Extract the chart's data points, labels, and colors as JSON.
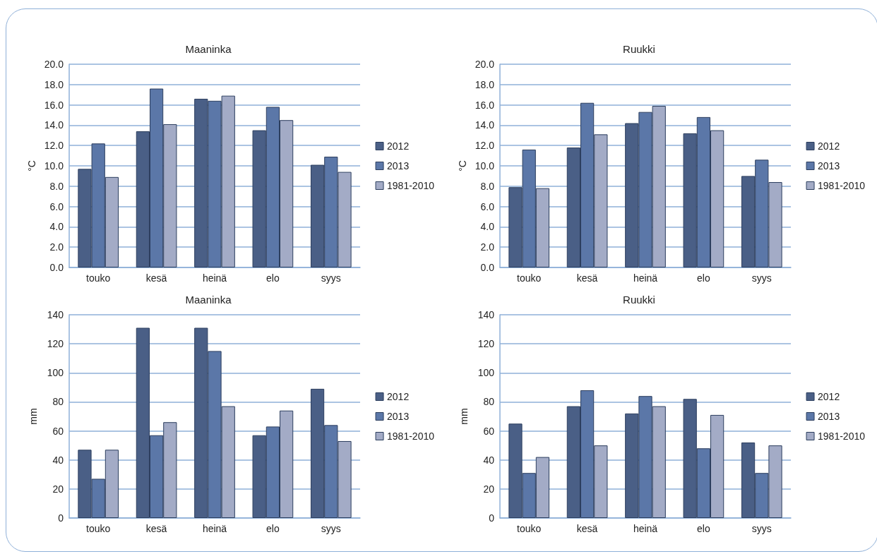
{
  "chart_data": [
    {
      "type": "bar",
      "title": "Maaninka",
      "ylabel": "°C",
      "categories": [
        "touko",
        "kesä",
        "heinä",
        "elo",
        "syys"
      ],
      "series": [
        {
          "name": "2012",
          "color": "#4a5f86",
          "values": [
            9.7,
            13.4,
            16.6,
            13.5,
            10.1
          ]
        },
        {
          "name": "2013",
          "color": "#5b77a8",
          "values": [
            12.2,
            17.6,
            16.4,
            15.8,
            10.9
          ]
        },
        {
          "name": "1981-2010",
          "color": "#a3abc6",
          "values": [
            8.9,
            14.1,
            16.9,
            14.5,
            9.4
          ]
        }
      ],
      "ylim": [
        0,
        20
      ],
      "yticks": [
        {
          "value": 0,
          "label": "0.0"
        },
        {
          "value": 2,
          "label": "2.0"
        },
        {
          "value": 4,
          "label": "4.0"
        },
        {
          "value": 6,
          "label": "6.0"
        },
        {
          "value": 8,
          "label": "8.0"
        },
        {
          "value": 10,
          "label": "10.0"
        },
        {
          "value": 12,
          "label": "12.0"
        },
        {
          "value": 14,
          "label": "14.0"
        },
        {
          "value": 16,
          "label": "16.0"
        },
        {
          "value": 18,
          "label": "18.0"
        },
        {
          "value": 20,
          "label": "20.0"
        }
      ],
      "grid": "y",
      "legend": "right"
    },
    {
      "type": "bar",
      "title": "Ruukki",
      "ylabel": "°C",
      "categories": [
        "touko",
        "kesä",
        "heinä",
        "elo",
        "syys"
      ],
      "series": [
        {
          "name": "2012",
          "color": "#4a5f86",
          "values": [
            7.9,
            11.8,
            14.2,
            13.2,
            9.0
          ]
        },
        {
          "name": "2013",
          "color": "#5b77a8",
          "values": [
            11.6,
            16.2,
            15.3,
            14.8,
            10.6
          ]
        },
        {
          "name": "1981-2010",
          "color": "#a3abc6",
          "values": [
            7.8,
            13.1,
            15.9,
            13.5,
            8.4
          ]
        }
      ],
      "ylim": [
        0,
        20
      ],
      "yticks": [
        {
          "value": 0,
          "label": "0.0"
        },
        {
          "value": 2,
          "label": "2.0"
        },
        {
          "value": 4,
          "label": "4.0"
        },
        {
          "value": 6,
          "label": "6.0"
        },
        {
          "value": 8,
          "label": "8.0"
        },
        {
          "value": 10,
          "label": "10.0"
        },
        {
          "value": 12,
          "label": "12.0"
        },
        {
          "value": 14,
          "label": "14.0"
        },
        {
          "value": 16,
          "label": "16.0"
        },
        {
          "value": 18,
          "label": "18.0"
        },
        {
          "value": 20,
          "label": "20.0"
        }
      ],
      "grid": "y",
      "legend": "right"
    },
    {
      "type": "bar",
      "title": "Maaninka",
      "ylabel": "mm",
      "categories": [
        "touko",
        "kesä",
        "heinä",
        "elo",
        "syys"
      ],
      "series": [
        {
          "name": "2012",
          "color": "#4a5f86",
          "values": [
            47,
            131,
            131,
            57,
            89
          ]
        },
        {
          "name": "2013",
          "color": "#5b77a8",
          "values": [
            27,
            57,
            115,
            63,
            64
          ]
        },
        {
          "name": "1981-2010",
          "color": "#a3abc6",
          "values": [
            47,
            66,
            77,
            74,
            53
          ]
        }
      ],
      "ylim": [
        0,
        140
      ],
      "yticks": [
        0,
        20,
        40,
        60,
        80,
        100,
        120,
        140
      ],
      "grid": "y",
      "legend": "right"
    },
    {
      "type": "bar",
      "title": "Ruukki",
      "ylabel": "mm",
      "categories": [
        "touko",
        "kesä",
        "heinä",
        "elo",
        "syys"
      ],
      "series": [
        {
          "name": "2012",
          "color": "#4a5f86",
          "values": [
            65,
            77,
            72,
            82,
            52
          ]
        },
        {
          "name": "2013",
          "color": "#5b77a8",
          "values": [
            31,
            88,
            84,
            48,
            31
          ]
        },
        {
          "name": "1981-2010",
          "color": "#a3abc6",
          "values": [
            42,
            50,
            77,
            71,
            50
          ]
        }
      ],
      "ylim": [
        0,
        140
      ],
      "yticks": [
        0,
        20,
        40,
        60,
        80,
        100,
        120,
        140
      ],
      "grid": "y",
      "legend": "right"
    }
  ]
}
